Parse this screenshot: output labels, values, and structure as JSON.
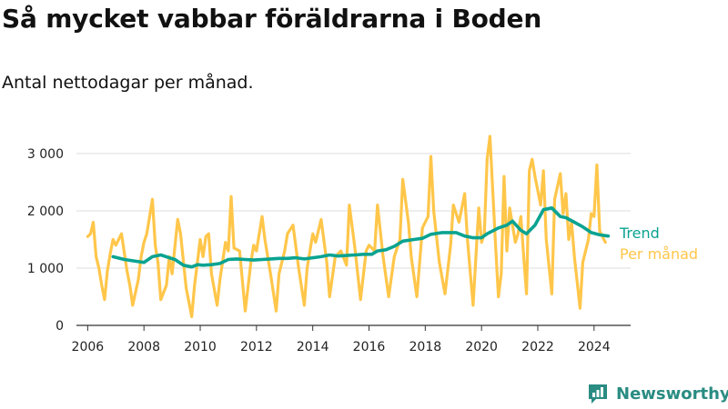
{
  "title": "Så mycket vabbar föräldrarna i Boden",
  "subtitle": "Antal nettodagar per månad.",
  "brand": "Newsworthy",
  "colors": {
    "trend": "#0aa391",
    "monthly": "#ffc64a",
    "axis": "#333333",
    "grid": "#dddddd",
    "brand": "#2a8c82"
  },
  "chart_data": {
    "type": "line",
    "y_tick_labels": [
      "0",
      "1 000",
      "2 000",
      "3 000"
    ],
    "y_ticks": [
      0,
      1000,
      2000,
      3000
    ],
    "x_tick_labels": [
      "2006",
      "2008",
      "2010",
      "2012",
      "2014",
      "2016",
      "2018",
      "2020",
      "2022",
      "2024"
    ],
    "x_ticks": [
      2006,
      2008,
      2010,
      2012,
      2014,
      2016,
      2018,
      2020,
      2022,
      2024
    ],
    "xlim": [
      2005.6,
      2025.3
    ],
    "ylim": [
      0,
      3300
    ],
    "grid": "horizontal",
    "legend_placement": "right",
    "series": [
      {
        "name": "Trend",
        "x": [
          2006.9,
          2007.3,
          2007.7,
          2008.0,
          2008.3,
          2008.6,
          2008.9,
          2009.1,
          2009.4,
          2009.7,
          2009.9,
          2010.1,
          2010.4,
          2010.7,
          2011.0,
          2011.3,
          2011.6,
          2011.9,
          2012.2,
          2012.5,
          2012.8,
          2013.1,
          2013.4,
          2013.7,
          2014.0,
          2014.3,
          2014.6,
          2014.9,
          2015.2,
          2015.5,
          2015.8,
          2016.1,
          2016.3,
          2016.6,
          2016.9,
          2017.2,
          2017.6,
          2017.9,
          2018.2,
          2018.6,
          2018.9,
          2019.1,
          2019.4,
          2019.7,
          2020.0,
          2020.2,
          2020.6,
          2020.9,
          2021.1,
          2021.4,
          2021.6,
          2021.9,
          2022.2,
          2022.5,
          2022.8,
          2023.0,
          2023.3,
          2023.6,
          2023.9,
          2024.2,
          2024.5
        ],
        "values": [
          1200,
          1150,
          1120,
          1100,
          1200,
          1230,
          1180,
          1150,
          1050,
          1020,
          1060,
          1050,
          1060,
          1080,
          1150,
          1160,
          1150,
          1140,
          1150,
          1160,
          1170,
          1170,
          1180,
          1160,
          1180,
          1200,
          1230,
          1210,
          1220,
          1230,
          1240,
          1240,
          1300,
          1320,
          1380,
          1470,
          1500,
          1520,
          1590,
          1620,
          1620,
          1620,
          1560,
          1530,
          1530,
          1600,
          1700,
          1750,
          1820,
          1660,
          1600,
          1750,
          2020,
          2050,
          1900,
          1880,
          1800,
          1720,
          1620,
          1580,
          1560
        ]
      },
      {
        "name": "Per månad",
        "x": [
          2006.0,
          2006.1,
          2006.2,
          2006.3,
          2006.4,
          2006.5,
          2006.6,
          2006.7,
          2006.8,
          2006.9,
          2007.0,
          2007.2,
          2007.4,
          2007.5,
          2007.6,
          2007.8,
          2007.9,
          2008.0,
          2008.1,
          2008.3,
          2008.4,
          2008.5,
          2008.6,
          2008.8,
          2008.9,
          2009.0,
          2009.2,
          2009.3,
          2009.5,
          2009.6,
          2009.7,
          2009.8,
          2010.0,
          2010.1,
          2010.2,
          2010.3,
          2010.4,
          2010.6,
          2010.7,
          2010.9,
          2011.0,
          2011.1,
          2011.2,
          2011.4,
          2011.6,
          2011.8,
          2011.9,
          2012.0,
          2012.2,
          2012.3,
          2012.5,
          2012.7,
          2012.8,
          2013.0,
          2013.1,
          2013.3,
          2013.5,
          2013.7,
          2013.8,
          2014.0,
          2014.1,
          2014.3,
          2014.5,
          2014.6,
          2014.8,
          2015.0,
          2015.2,
          2015.3,
          2015.5,
          2015.7,
          2015.9,
          2016.0,
          2016.2,
          2016.3,
          2016.5,
          2016.7,
          2016.9,
          2017.1,
          2017.2,
          2017.4,
          2017.5,
          2017.7,
          2017.9,
          2018.1,
          2018.2,
          2018.3,
          2018.5,
          2018.7,
          2018.9,
          2019.0,
          2019.2,
          2019.4,
          2019.5,
          2019.7,
          2019.8,
          2019.9,
          2020.0,
          2020.1,
          2020.2,
          2020.3,
          2020.5,
          2020.6,
          2020.7,
          2020.8,
          2020.9,
          2021.0,
          2021.2,
          2021.3,
          2021.4,
          2021.5,
          2021.6,
          2021.7,
          2021.8,
          2021.9,
          2022.1,
          2022.2,
          2022.3,
          2022.5,
          2022.6,
          2022.8,
          2022.9,
          2023.0,
          2023.1,
          2023.2,
          2023.3,
          2023.5,
          2023.6,
          2023.8,
          2023.9,
          2024.0,
          2024.1,
          2024.2,
          2024.3,
          2024.4
        ],
        "values": [
          1550,
          1600,
          1800,
          1200,
          1000,
          700,
          450,
          950,
          1250,
          1500,
          1400,
          1600,
          950,
          700,
          350,
          800,
          1200,
          1450,
          1600,
          2200,
          1400,
          1100,
          450,
          700,
          1200,
          900,
          1850,
          1600,
          650,
          400,
          150,
          700,
          1500,
          1200,
          1550,
          1600,
          900,
          350,
          800,
          1450,
          1300,
          2250,
          1350,
          1300,
          250,
          1100,
          1400,
          1300,
          1900,
          1500,
          900,
          250,
          900,
          1300,
          1600,
          1750,
          1000,
          350,
          1000,
          1600,
          1450,
          1850,
          1100,
          500,
          1200,
          1300,
          1050,
          2100,
          1350,
          450,
          1300,
          1400,
          1300,
          2100,
          1200,
          500,
          1200,
          1500,
          2550,
          1800,
          1200,
          500,
          1700,
          1900,
          2950,
          2000,
          1100,
          550,
          1400,
          2100,
          1800,
          2300,
          1500,
          350,
          1200,
          2050,
          1450,
          1600,
          2900,
          3300,
          1400,
          500,
          900,
          2600,
          1300,
          2050,
          1450,
          1600,
          1900,
          1200,
          550,
          2700,
          2900,
          2600,
          2100,
          2700,
          1500,
          550,
          2200,
          2650,
          1950,
          2300,
          1500,
          1800,
          1200,
          300,
          1100,
          1500,
          1950,
          1900,
          2800,
          1650,
          1550,
          1450
        ]
      }
    ]
  }
}
